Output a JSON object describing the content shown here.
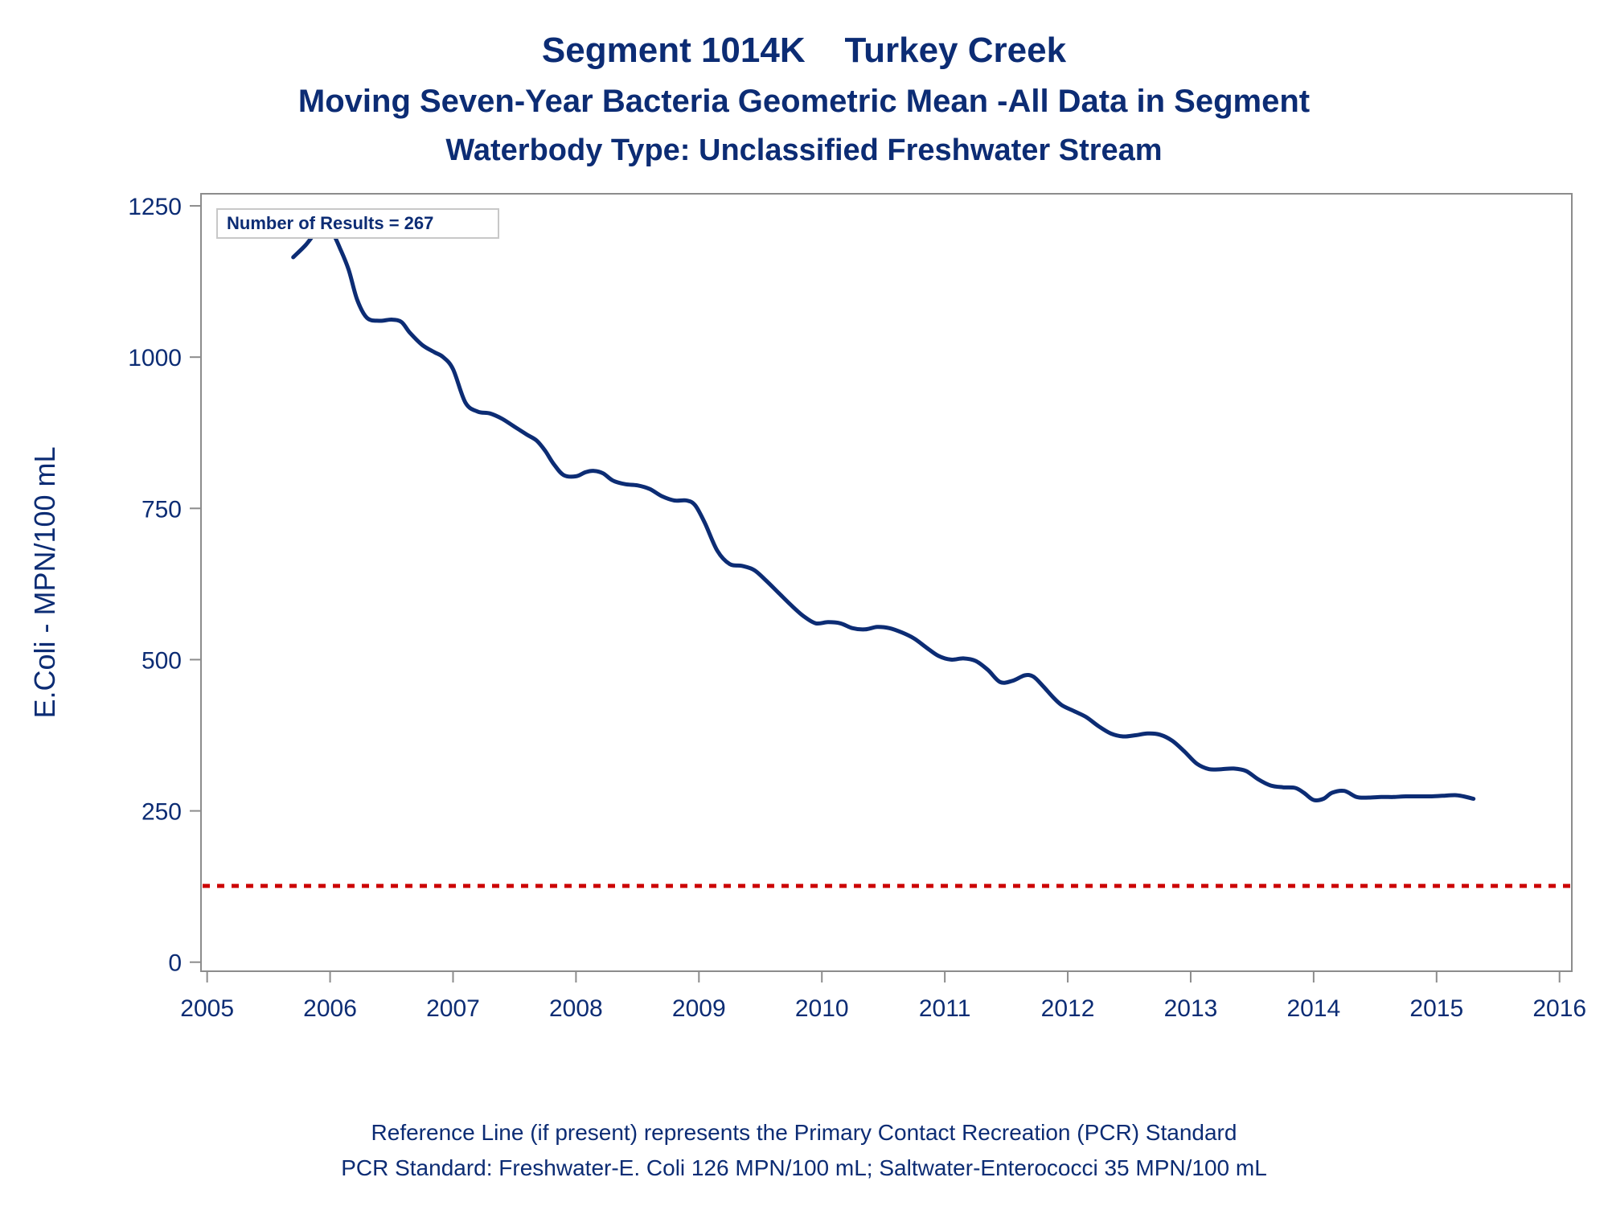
{
  "chart_data": {
    "type": "line",
    "title": "Segment 1014K    Turkey Creek",
    "subtitle": "Moving Seven-Year Bacteria Geometric Mean -All Data in Segment",
    "subtitle2": "Waterbody Type: Unclassified Freshwater Stream",
    "xlabel": "",
    "ylabel": "E.Coli - MPN/100 mL",
    "xlim": [
      2004.95,
      2016.1
    ],
    "ylim": [
      -15,
      1270
    ],
    "x_ticks": [
      "2005",
      "2006",
      "2007",
      "2008",
      "2009",
      "2010",
      "2011",
      "2012",
      "2013",
      "2014",
      "2015",
      "2016"
    ],
    "y_ticks": [
      "0",
      "250",
      "500",
      "750",
      "1000",
      "1250"
    ],
    "annotation": "Number of Results = 267",
    "reference_line": {
      "y": 126,
      "color": "#cc0000",
      "style": "dotted"
    },
    "line_color": "#0c2c74",
    "series": [
      {
        "x": [
          2005.7,
          2005.8,
          2005.88,
          2005.95,
          2006.02,
          2006.08,
          2006.15,
          2006.22,
          2006.3,
          2006.4,
          2006.5,
          2006.58,
          2006.65,
          2006.75,
          2006.85,
          2006.92,
          2007.0,
          2007.1,
          2007.2,
          2007.3,
          2007.4,
          2007.5,
          2007.6,
          2007.68,
          2007.75,
          2007.82,
          2007.9,
          2008.0,
          2008.08,
          2008.15,
          2008.22,
          2008.3,
          2008.4,
          2008.5,
          2008.6,
          2008.7,
          2008.8,
          2008.9,
          2008.97,
          2009.05,
          2009.15,
          2009.25,
          2009.35,
          2009.45,
          2009.55,
          2009.65,
          2009.75,
          2009.85,
          2009.95,
          2010.05,
          2010.15,
          2010.25,
          2010.35,
          2010.45,
          2010.55,
          2010.65,
          2010.75,
          2010.85,
          2010.95,
          2011.05,
          2011.15,
          2011.25,
          2011.35,
          2011.45,
          2011.55,
          2011.65,
          2011.72,
          2011.8,
          2011.88,
          2011.95,
          2012.05,
          2012.15,
          2012.25,
          2012.35,
          2012.45,
          2012.55,
          2012.65,
          2012.75,
          2012.85,
          2012.95,
          2013.05,
          2013.15,
          2013.25,
          2013.35,
          2013.45,
          2013.55,
          2013.65,
          2013.75,
          2013.85,
          2013.92,
          2014.0,
          2014.08,
          2014.15,
          2014.25,
          2014.35,
          2014.45,
          2014.55,
          2014.65,
          2014.75,
          2014.85,
          2014.95,
          2015.05,
          2015.15,
          2015.22,
          2015.3
        ],
        "y": [
          1165,
          1185,
          1205,
          1215,
          1205,
          1180,
          1145,
          1095,
          1065,
          1060,
          1062,
          1058,
          1040,
          1020,
          1008,
          1000,
          980,
          925,
          910,
          907,
          898,
          885,
          872,
          862,
          845,
          823,
          805,
          803,
          810,
          812,
          808,
          796,
          790,
          788,
          782,
          770,
          763,
          763,
          755,
          725,
          680,
          658,
          655,
          648,
          630,
          610,
          590,
          572,
          560,
          562,
          560,
          552,
          550,
          554,
          552,
          545,
          535,
          520,
          506,
          500,
          502,
          498,
          483,
          463,
          465,
          474,
          472,
          456,
          438,
          425,
          415,
          405,
          390,
          378,
          373,
          375,
          378,
          376,
          366,
          348,
          328,
          319,
          319,
          320,
          316,
          302,
          292,
          289,
          288,
          280,
          268,
          270,
          280,
          283,
          273,
          272,
          273,
          273,
          274,
          274,
          274,
          275,
          276,
          274,
          270
        ]
      }
    ]
  }
}
